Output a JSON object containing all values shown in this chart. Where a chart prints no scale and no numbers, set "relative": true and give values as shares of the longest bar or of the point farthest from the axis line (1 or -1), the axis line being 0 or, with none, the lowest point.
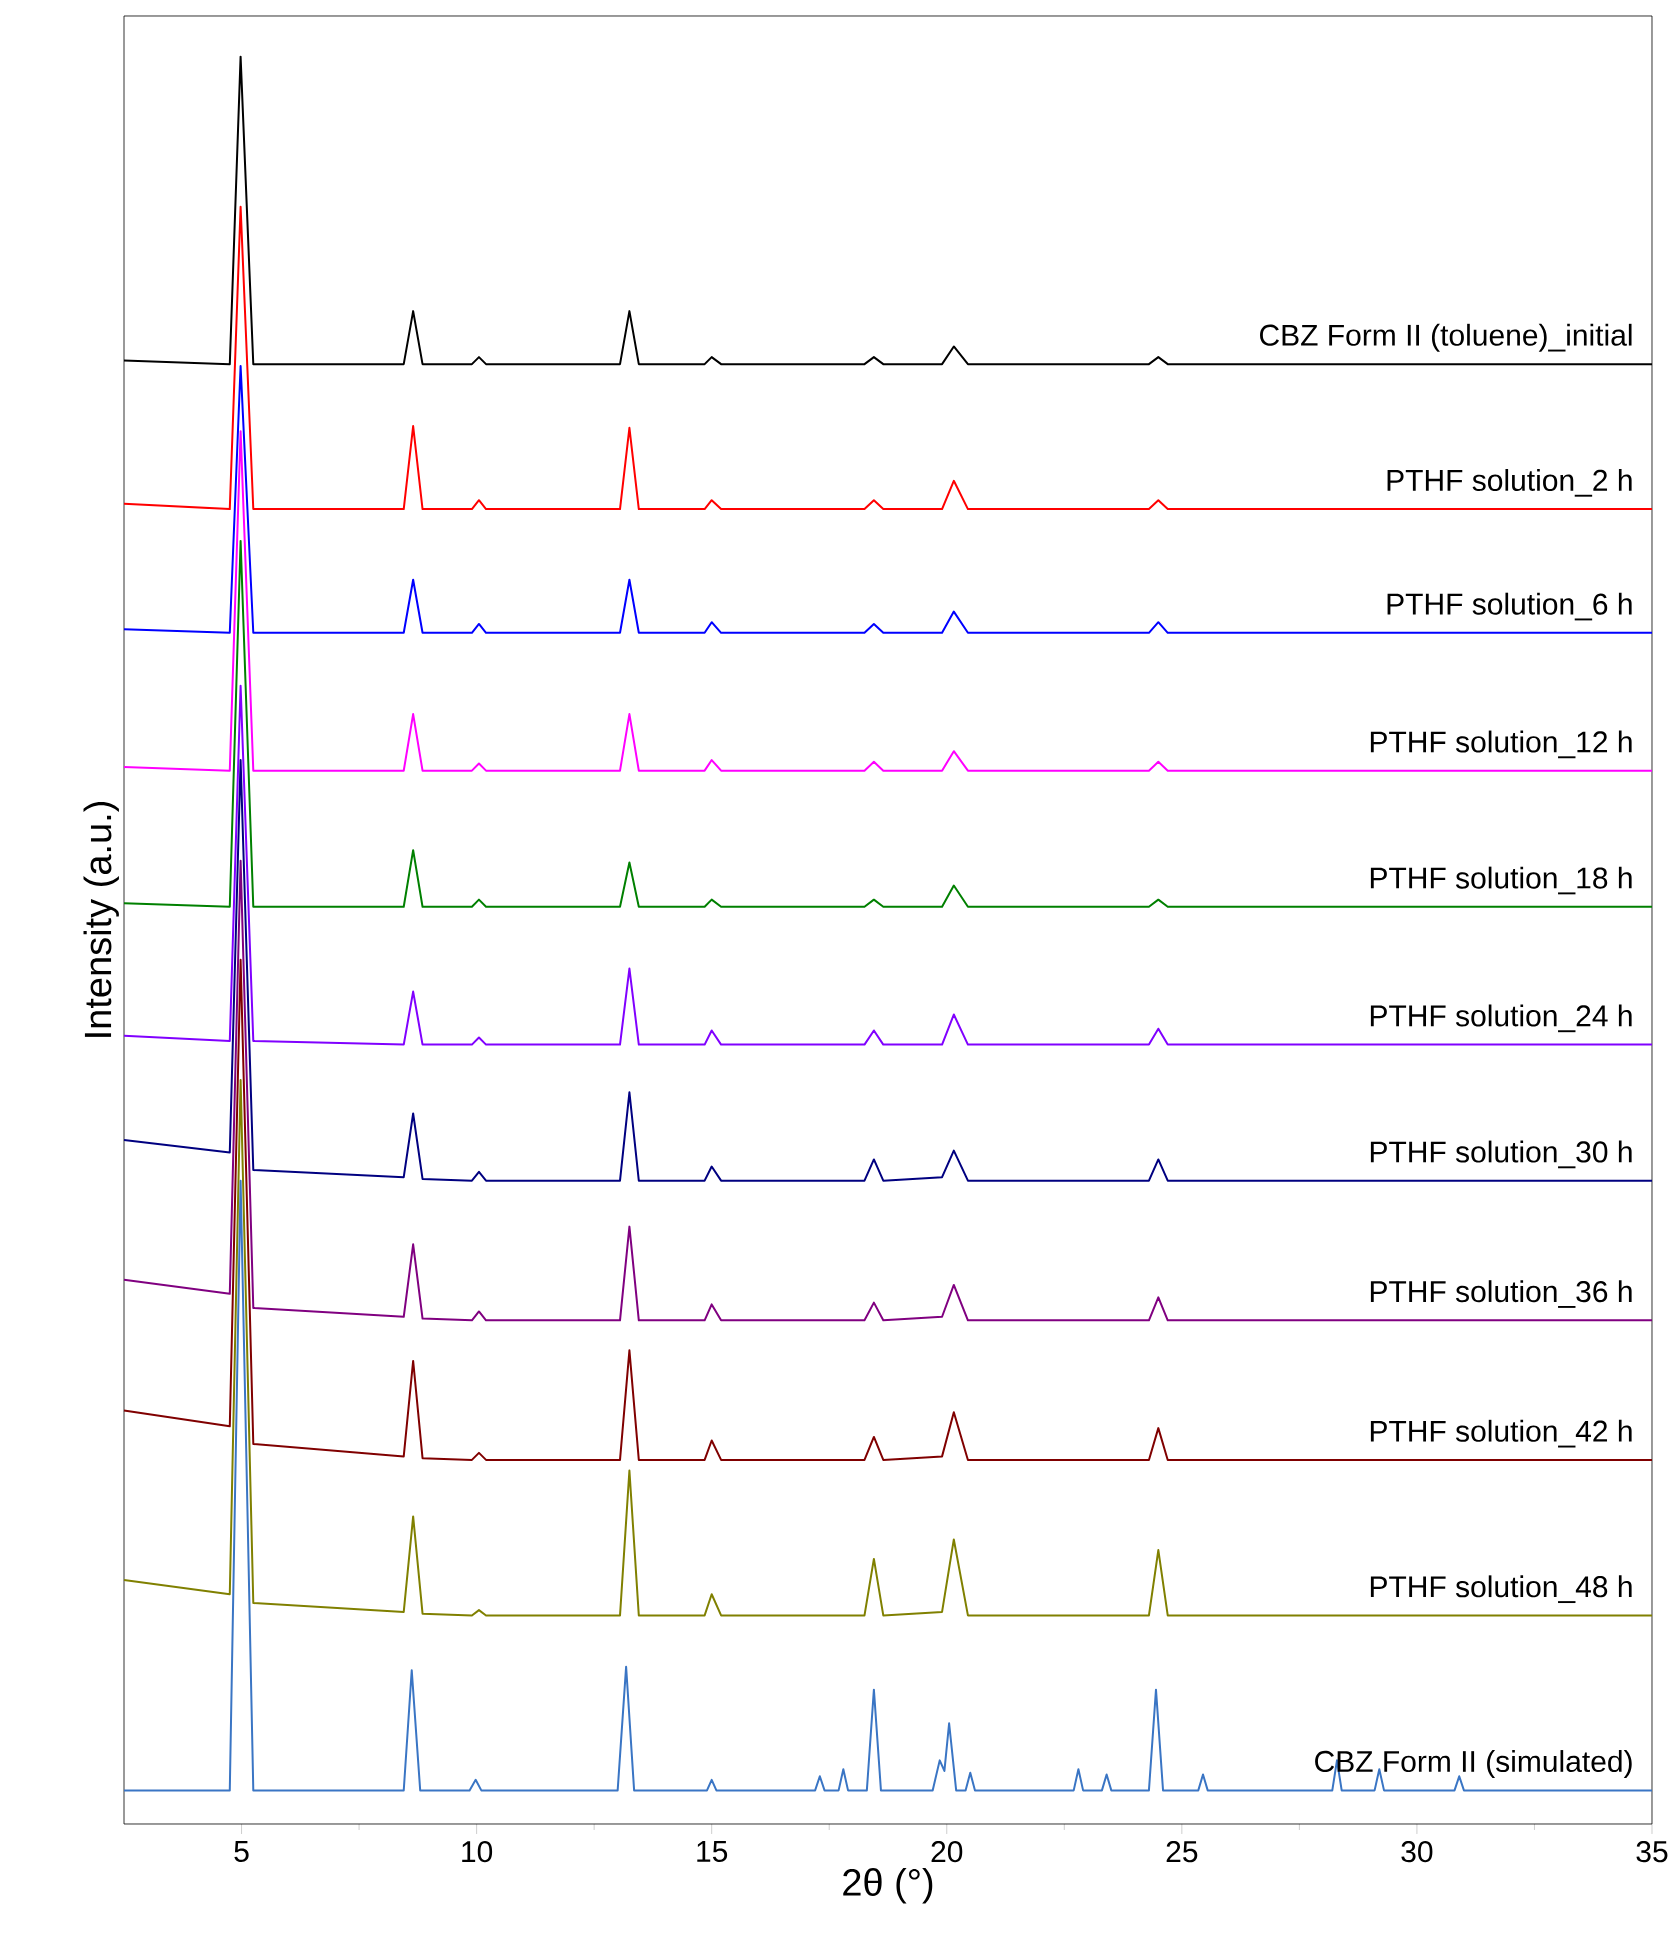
{
  "chart_data": {
    "type": "line",
    "relative": true,
    "xlabel": "2θ (°)",
    "ylabel": "Intensity (a.u.)",
    "xlim": [
      2.5,
      35
    ],
    "xticks": [
      5,
      10,
      15,
      20,
      25,
      30,
      35
    ],
    "tick_labels": "x",
    "legend": false,
    "grid": false,
    "marker": "none",
    "line_style": "solid",
    "x": [
      2.5,
      4.75,
      4.98,
      5.25,
      8.45,
      8.65,
      8.85,
      9.9,
      10.05,
      10.2,
      13.05,
      13.25,
      13.45,
      14.85,
      15.0,
      15.2,
      18.25,
      18.45,
      18.65,
      19.9,
      20.15,
      20.45,
      24.3,
      24.5,
      24.7,
      35
    ],
    "series": [
      {
        "name": "CBZ Form II (toluene)_initial",
        "color": "#000000",
        "values": [
          0.828,
          0.826,
          1.0,
          0.826,
          0.826,
          0.856,
          0.826,
          0.826,
          0.83,
          0.826,
          0.826,
          0.856,
          0.826,
          0.826,
          0.83,
          0.826,
          0.826,
          0.83,
          0.826,
          0.826,
          0.836,
          0.826,
          0.826,
          0.83,
          0.826,
          0.826
        ]
      },
      {
        "name": "PTHF solution_2 h",
        "color": "#ff0000",
        "values": [
          0.747,
          0.744,
          0.915,
          0.744,
          0.744,
          0.791,
          0.744,
          0.744,
          0.749,
          0.744,
          0.744,
          0.79,
          0.744,
          0.744,
          0.749,
          0.744,
          0.744,
          0.749,
          0.744,
          0.744,
          0.76,
          0.744,
          0.744,
          0.749,
          0.744,
          0.744
        ]
      },
      {
        "name": "PTHF solution_6 h",
        "color": "#0000ff",
        "values": [
          0.676,
          0.674,
          0.825,
          0.674,
          0.674,
          0.704,
          0.674,
          0.674,
          0.679,
          0.674,
          0.674,
          0.704,
          0.674,
          0.674,
          0.68,
          0.674,
          0.674,
          0.679,
          0.674,
          0.674,
          0.686,
          0.674,
          0.674,
          0.68,
          0.674,
          0.674
        ]
      },
      {
        "name": "PTHF solution_12 h",
        "color": "#ff00ff",
        "values": [
          0.598,
          0.596,
          0.788,
          0.596,
          0.596,
          0.628,
          0.596,
          0.596,
          0.6,
          0.596,
          0.596,
          0.628,
          0.596,
          0.596,
          0.602,
          0.596,
          0.596,
          0.601,
          0.596,
          0.596,
          0.607,
          0.596,
          0.596,
          0.601,
          0.596,
          0.596
        ]
      },
      {
        "name": "PTHF solution_18 h",
        "color": "#008000",
        "values": [
          0.521,
          0.519,
          0.726,
          0.519,
          0.519,
          0.551,
          0.519,
          0.519,
          0.523,
          0.519,
          0.519,
          0.544,
          0.519,
          0.519,
          0.523,
          0.519,
          0.519,
          0.523,
          0.519,
          0.519,
          0.531,
          0.519,
          0.519,
          0.523,
          0.519,
          0.519
        ]
      },
      {
        "name": "PTHF solution_24 h",
        "color": "#8000ff",
        "values": [
          0.446,
          0.443,
          0.644,
          0.443,
          0.441,
          0.471,
          0.441,
          0.441,
          0.445,
          0.441,
          0.441,
          0.484,
          0.441,
          0.441,
          0.449,
          0.441,
          0.441,
          0.449,
          0.441,
          0.441,
          0.458,
          0.441,
          0.441,
          0.45,
          0.441,
          0.441
        ]
      },
      {
        "name": "PTHF solution_30 h",
        "color": "#000080",
        "values": [
          0.387,
          0.38,
          0.602,
          0.37,
          0.366,
          0.402,
          0.365,
          0.364,
          0.369,
          0.364,
          0.364,
          0.414,
          0.364,
          0.364,
          0.372,
          0.364,
          0.364,
          0.376,
          0.364,
          0.366,
          0.381,
          0.364,
          0.364,
          0.376,
          0.364,
          0.364
        ]
      },
      {
        "name": "PTHF solution_36 h",
        "color": "#800080",
        "values": [
          0.308,
          0.3,
          0.545,
          0.292,
          0.287,
          0.328,
          0.286,
          0.285,
          0.29,
          0.285,
          0.285,
          0.338,
          0.285,
          0.285,
          0.294,
          0.285,
          0.285,
          0.295,
          0.285,
          0.287,
          0.305,
          0.285,
          0.285,
          0.298,
          0.285,
          0.285
        ]
      },
      {
        "name": "PTHF solution_42 h",
        "color": "#800000",
        "values": [
          0.234,
          0.225,
          0.489,
          0.215,
          0.208,
          0.262,
          0.207,
          0.206,
          0.21,
          0.206,
          0.206,
          0.268,
          0.206,
          0.206,
          0.217,
          0.206,
          0.206,
          0.219,
          0.206,
          0.208,
          0.233,
          0.206,
          0.206,
          0.224,
          0.206,
          0.206
        ]
      },
      {
        "name": "PTHF solution_48 h",
        "color": "#808000",
        "values": [
          0.138,
          0.13,
          0.421,
          0.125,
          0.12,
          0.174,
          0.119,
          0.118,
          0.121,
          0.118,
          0.118,
          0.2,
          0.118,
          0.118,
          0.13,
          0.118,
          0.118,
          0.15,
          0.118,
          0.12,
          0.161,
          0.118,
          0.118,
          0.155,
          0.118,
          0.118
        ]
      },
      {
        "name": "CBZ Form II (simulated)",
        "color": "#3a75c4",
        "x": [
          2.5,
          4.75,
          4.98,
          5.25,
          8.45,
          8.62,
          8.8,
          9.85,
          9.98,
          10.1,
          13.0,
          13.18,
          13.35,
          14.9,
          15.0,
          15.1,
          17.2,
          17.3,
          17.4,
          17.7,
          17.8,
          17.9,
          18.3,
          18.45,
          18.6,
          19.7,
          19.85,
          19.95,
          20.05,
          20.2,
          20.4,
          20.5,
          20.6,
          22.7,
          22.8,
          22.9,
          23.3,
          23.4,
          23.5,
          24.3,
          24.45,
          24.6,
          25.35,
          25.45,
          25.55,
          28.2,
          28.3,
          28.4,
          29.1,
          29.2,
          29.3,
          30.8,
          30.9,
          31.0,
          35
        ],
        "values": [
          0.019,
          0.019,
          0.364,
          0.019,
          0.019,
          0.087,
          0.019,
          0.019,
          0.025,
          0.019,
          0.019,
          0.089,
          0.019,
          0.019,
          0.025,
          0.019,
          0.019,
          0.027,
          0.019,
          0.019,
          0.031,
          0.019,
          0.019,
          0.076,
          0.019,
          0.019,
          0.036,
          0.03,
          0.057,
          0.019,
          0.019,
          0.029,
          0.019,
          0.019,
          0.031,
          0.019,
          0.019,
          0.028,
          0.019,
          0.019,
          0.076,
          0.019,
          0.019,
          0.028,
          0.019,
          0.019,
          0.036,
          0.019,
          0.019,
          0.031,
          0.019,
          0.019,
          0.027,
          0.019,
          0.019
        ]
      }
    ]
  }
}
